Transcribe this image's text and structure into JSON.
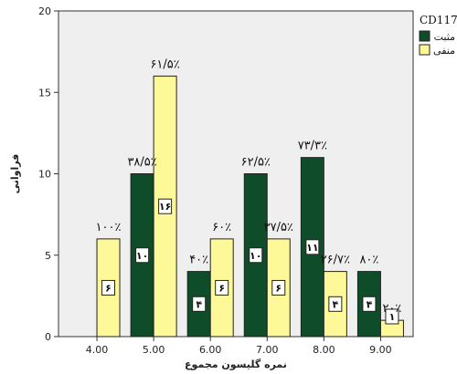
{
  "chart_data": {
    "type": "bar",
    "xlabel": "نمره گلیسون مجموع",
    "ylabel": "فراوانی",
    "ylim": [
      0,
      20
    ],
    "yticks": [
      "0",
      "5",
      "10",
      "15",
      "20"
    ],
    "categories": [
      "4.00",
      "5.00",
      "6.00",
      "7.00",
      "8.00",
      "9.00"
    ],
    "legend_title": "CD117",
    "legend_position": "top-right",
    "grid": false,
    "series": [
      {
        "name": "مثبت",
        "color": "#0f4d2a",
        "values": [
          0,
          10,
          4,
          10,
          11,
          4
        ],
        "count_labels": [
          "",
          "۱۰",
          "۴",
          "۱۰",
          "۱۱",
          "۴"
        ],
        "pct_labels": [
          "",
          "۳۸/۵٪",
          "۴۰٪",
          "۶۲/۵٪",
          "۷۳/۳٪",
          "۸۰٪"
        ]
      },
      {
        "name": "منفی",
        "color": "#fdf999",
        "values": [
          6,
          16,
          6,
          6,
          4,
          1
        ],
        "count_labels": [
          "۶",
          "۱۶",
          "۶",
          "۶",
          "۴",
          "۱"
        ],
        "pct_labels": [
          "۱۰۰٪",
          "۶۱/۵٪",
          "۶۰٪",
          "۳۷/۵٪",
          "۲۶/۷٪",
          "۲۰٪"
        ]
      }
    ]
  }
}
